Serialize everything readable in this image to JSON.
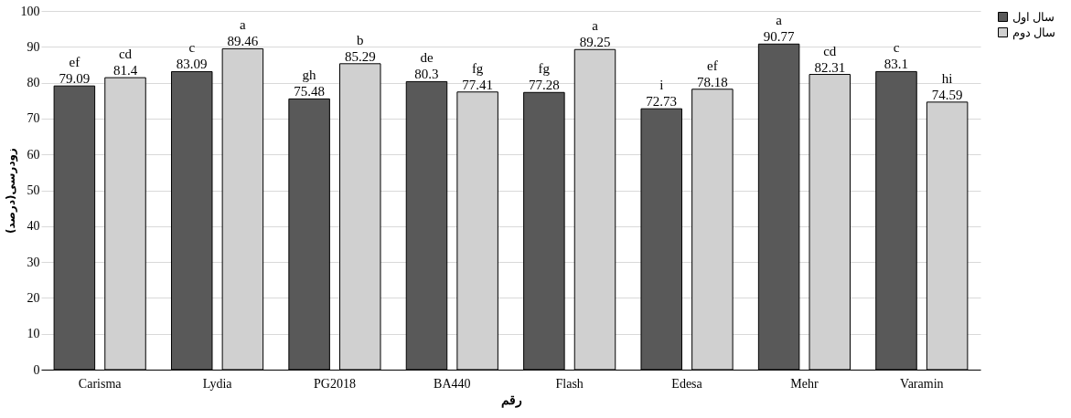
{
  "chart_data": {
    "type": "bar",
    "xlabel": "رقم",
    "ylabel": "زودرسی(درصد)",
    "categories": [
      "Carisma",
      "Lydia",
      "PG2018",
      "BA440",
      "Flash",
      "Edesa",
      "Mehr",
      "Varamin"
    ],
    "series": [
      {
        "name": "سال اول",
        "color": "#595959",
        "values": [
          79.09,
          83.09,
          75.48,
          80.3,
          77.28,
          72.73,
          90.77,
          83.1
        ]
      },
      {
        "name": "سال دوم",
        "color": "#d0d0d0",
        "values": [
          81.4,
          89.46,
          85.29,
          77.41,
          89.25,
          78.18,
          82.31,
          74.59
        ]
      }
    ],
    "ylim": [
      0,
      100
    ],
    "yticks": [
      0,
      10,
      20,
      30,
      40,
      50,
      60,
      70,
      80,
      90,
      100
    ],
    "grid": "y",
    "legend": "top right",
    "data_labels": true,
    "annotations": [
      "ef",
      "cd",
      "c",
      "a",
      "gh",
      "b",
      "de",
      "fg",
      "fg",
      "a",
      "i",
      "ef",
      "a",
      "cd",
      "c",
      "hi"
    ]
  }
}
